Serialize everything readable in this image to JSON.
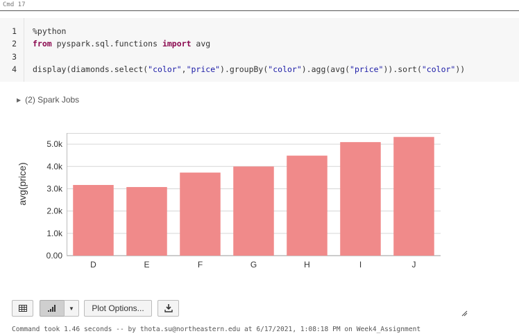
{
  "cell": {
    "header": "Cmd 17",
    "lines": [
      {
        "num": "1",
        "segments": [
          {
            "t": "%python",
            "c": ""
          }
        ]
      },
      {
        "num": "2",
        "segments": [
          {
            "t": "from",
            "c": "kw"
          },
          {
            "t": " pyspark.sql.functions ",
            "c": ""
          },
          {
            "t": "import",
            "c": "kw"
          },
          {
            "t": " avg",
            "c": ""
          }
        ]
      },
      {
        "num": "3",
        "segments": []
      },
      {
        "num": "4",
        "segments": [
          {
            "t": "display(diamonds.select(",
            "c": ""
          },
          {
            "t": "\"color\"",
            "c": "str"
          },
          {
            "t": ",",
            "c": ""
          },
          {
            "t": "\"price\"",
            "c": "str"
          },
          {
            "t": ").groupBy(",
            "c": ""
          },
          {
            "t": "\"color\"",
            "c": "str"
          },
          {
            "t": ").agg(avg(",
            "c": ""
          },
          {
            "t": "\"price\"",
            "c": "str"
          },
          {
            "t": ")).sort(",
            "c": ""
          },
          {
            "t": "\"color\"",
            "c": "str"
          },
          {
            "t": "))",
            "c": ""
          }
        ]
      }
    ],
    "spark_jobs": "(2) Spark Jobs"
  },
  "chart_data": {
    "type": "bar",
    "categories": [
      "D",
      "E",
      "F",
      "G",
      "H",
      "I",
      "J"
    ],
    "values": [
      3170,
      3077,
      3725,
      3999,
      4486,
      5092,
      5324
    ],
    "ylabel": "avg(price)",
    "yticks": [
      0,
      1000,
      2000,
      3000,
      4000,
      5000
    ],
    "ytick_labels": [
      "0.00",
      "1.0k",
      "2.0k",
      "3.0k",
      "4.0k",
      "5.0k"
    ],
    "ylim": [
      0,
      5500
    ],
    "grid": true,
    "bar_color": "#f08a8a"
  },
  "toolbar": {
    "plot_options_label": "Plot Options..."
  },
  "footer": {
    "text": "Command took 1.46 seconds -- by thota.su@northeastern.edu at 6/17/2021, 1:08:18 PM on Week4_Assignment"
  }
}
